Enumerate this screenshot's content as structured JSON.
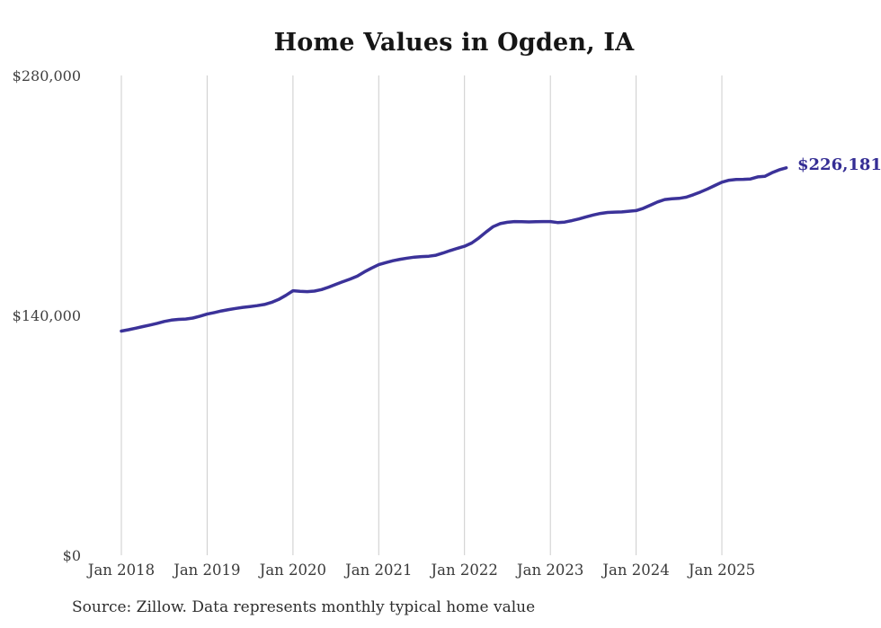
{
  "chart_data": {
    "type": "line",
    "title": "Home Values in Ogden, IA",
    "xlabel": "",
    "ylabel": "",
    "ylim": [
      0,
      280000
    ],
    "x_tick_labels": [
      "Jan 2018",
      "Jan 2019",
      "Jan 2020",
      "Jan 2021",
      "Jan 2022",
      "Jan 2023",
      "Jan 2024",
      "Jan 2025"
    ],
    "y_tick_labels": [
      "$280,000",
      "$140,000",
      "$0"
    ],
    "grid": "vertical-gridlines-only",
    "legend": "none",
    "end_label": "$226,181",
    "end_value": 226181,
    "line_color": "#3b3299",
    "series": [
      {
        "name": "Typical home value",
        "frequency": "monthly",
        "start_month": "Jan 2018",
        "end_month": "Oct 2025",
        "values": [
          131100,
          131900,
          132800,
          133700,
          134600,
          135600,
          136700,
          137500,
          137900,
          138100,
          138700,
          139800,
          141000,
          141900,
          142800,
          143600,
          144300,
          144900,
          145400,
          145900,
          146600,
          147800,
          149500,
          151900,
          154600,
          154300,
          154100,
          154400,
          155300,
          156700,
          158300,
          159900,
          161400,
          163100,
          165600,
          167800,
          169800,
          171000,
          172100,
          172900,
          173600,
          174200,
          174500,
          174700,
          175300,
          176600,
          178000,
          179300,
          180500,
          182400,
          185300,
          188800,
          191900,
          193700,
          194500,
          194900,
          194800,
          194700,
          194800,
          194900,
          194900,
          194300,
          194600,
          195400,
          196400,
          197600,
          198700,
          199600,
          200200,
          200400,
          200500,
          200900,
          201300,
          202600,
          204400,
          206300,
          207700,
          208200,
          208400,
          209100,
          210500,
          212100,
          213900,
          215900,
          217800,
          219000,
          219400,
          219500,
          219700,
          220900,
          221200,
          223300,
          225000,
          226181
        ]
      }
    ]
  },
  "footer": {
    "source_note": "Source: Zillow. Data represents monthly typical home value"
  },
  "colors": {
    "line": "#3b3299",
    "end_label": "#342d94",
    "gridline": "#cccccc",
    "title": "#161616",
    "tick_label": "#3f3f3f",
    "footer_text": "#2e2e2e"
  }
}
